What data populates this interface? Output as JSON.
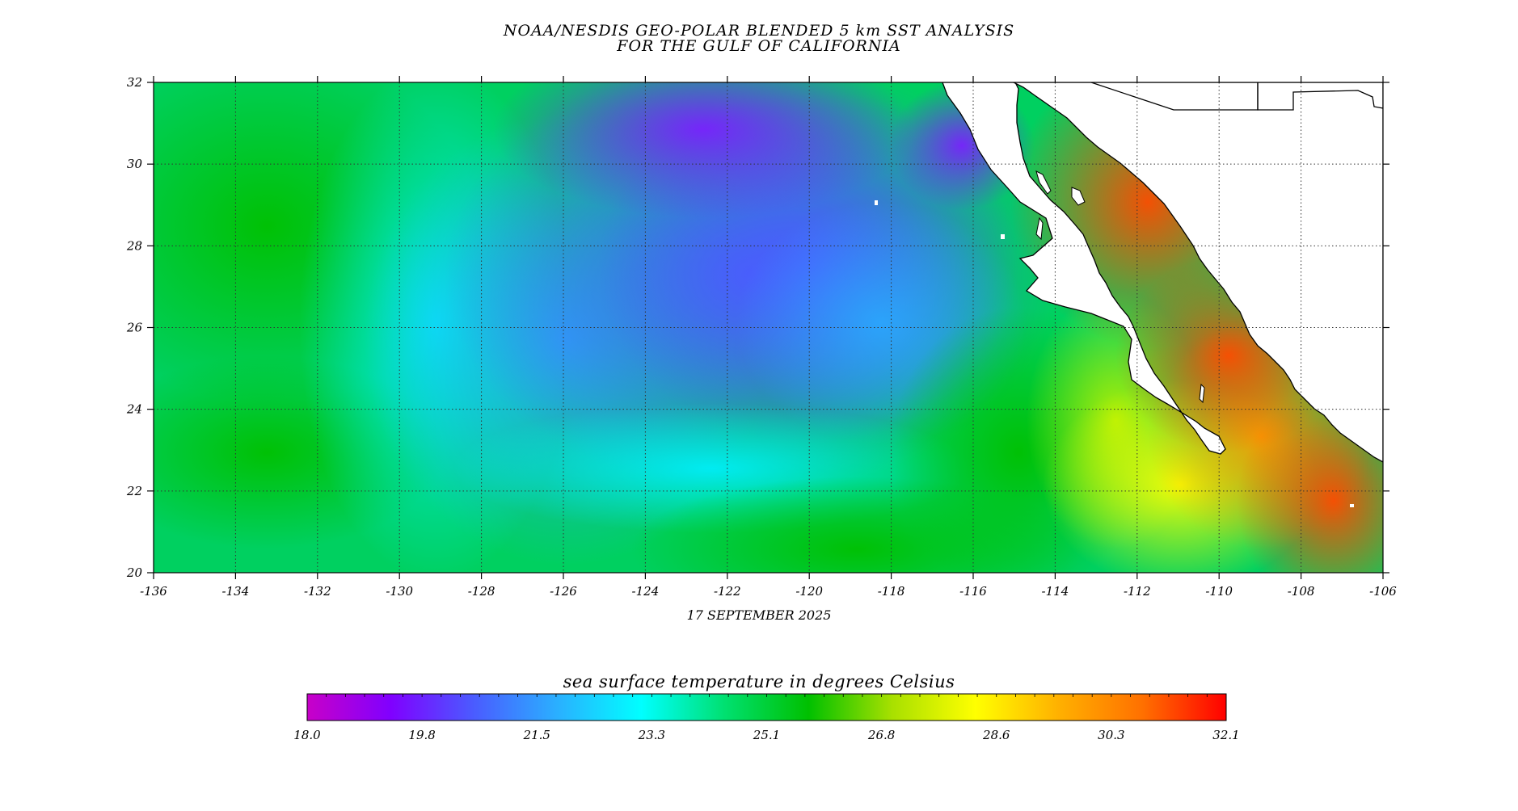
{
  "title": {
    "line1": "NOAA/NESDIS GEO-POLAR BLENDED 5 km SST ANALYSIS",
    "line2": "FOR THE GULF OF CALIFORNIA"
  },
  "date": "17 SEPTEMBER 2025",
  "map": {
    "lon_range": [
      -136,
      -106
    ],
    "lat_range": [
      20,
      32
    ],
    "lon_ticks": [
      "-136",
      "-134",
      "-132",
      "-130",
      "-128",
      "-126",
      "-124",
      "-122",
      "-120",
      "-118",
      "-116",
      "-114",
      "-112",
      "-110",
      "-108",
      "-106"
    ],
    "lat_ticks": [
      "32",
      "30",
      "28",
      "26",
      "24",
      "22",
      "20"
    ],
    "grid": "dotted",
    "land_color": "#ffffff"
  },
  "colorbar": {
    "title": "sea surface temperature in degrees Celsius",
    "min": 18.0,
    "max": 32.1,
    "labels": [
      "18.0",
      "19.8",
      "21.5",
      "23.3",
      "25.1",
      "26.8",
      "28.6",
      "30.3",
      "32.1"
    ],
    "colors": [
      "#c800c8",
      "#8000ff",
      "#4a5cff",
      "#2ab0ff",
      "#00ffff",
      "#00e070",
      "#00c000",
      "#a8e000",
      "#ffff00",
      "#ffb000",
      "#ff7000",
      "#ff0000"
    ]
  }
}
